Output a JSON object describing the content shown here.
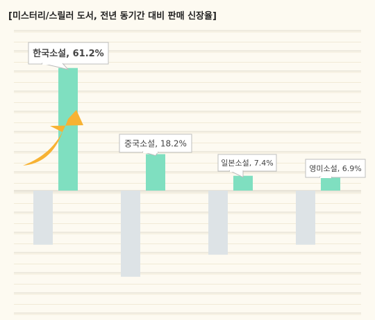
{
  "chart_data": {
    "type": "bar",
    "title": "[미스터리/스릴러 도서, 전년 동기간 대비 판매 신장율]",
    "categories": [
      "한국소설",
      "중국소설",
      "일본소설",
      "영미소설"
    ],
    "series": [
      {
        "values": [
          -27,
          -43,
          -32,
          -27
        ],
        "color": "#dde3e6"
      },
      {
        "values": [
          61.2,
          18.2,
          7.4,
          6.9
        ],
        "color": "#7fdfc0"
      }
    ],
    "data_labels": [
      "한국소설, 61.2%",
      "중국소설, 18.2%",
      "일본소설, 7.4%",
      "영미소설, 6.9%"
    ],
    "highlight_index": 0,
    "arrow_color": "#f7b233",
    "ylim": [
      -62,
      80
    ],
    "grid": true
  }
}
